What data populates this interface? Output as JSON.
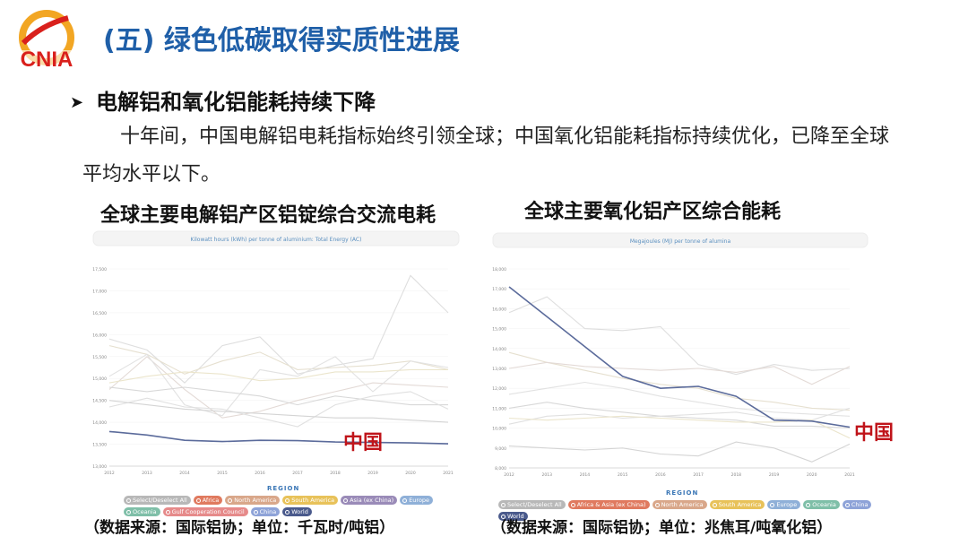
{
  "header": {
    "logo_text": "CNIA",
    "title": "(五) 绿色低碳取得实质性进展"
  },
  "bullet": {
    "text": "电解铝和氧化铝能耗持续下降",
    "paragraph": "十年间，中国电解铝电耗指标始终引领全球；中国氧化铝能耗指标持续优化，已降至全球平均水平以下。"
  },
  "colors": {
    "title": "#1f5fa8",
    "china_line": "#5b6b9b",
    "china_label": "#c0141a"
  },
  "chart_data": [
    {
      "type": "line",
      "title": "全球主要电解铝产区铝锭综合交流电耗",
      "subtitle": "Kilowatt hours (kWh) per tonne of aluminium: Total Energy (AC)",
      "x": [
        2012,
        2013,
        2014,
        2015,
        2016,
        2017,
        2018,
        2019,
        2020,
        2021
      ],
      "ylim": [
        13000,
        17500
      ],
      "yticks": [
        13000,
        13500,
        14000,
        14500,
        15000,
        15500,
        16000,
        16500,
        17000,
        17500
      ],
      "yticklabels": [
        "13,000",
        "13,500",
        "14,000",
        "14,500",
        "15,000",
        "15,500",
        "16,000",
        "16,500",
        "17,000",
        "17,500"
      ],
      "legend_title": "REGION",
      "legend": [
        {
          "label": "Select/Deselect All",
          "color": "#b8b8b8"
        },
        {
          "label": "Africa",
          "color": "#e07a5f"
        },
        {
          "label": "North America",
          "color": "#d9a78a"
        },
        {
          "label": "South America",
          "color": "#e8c25a"
        },
        {
          "label": "Asia (ex China)",
          "color": "#9a8bb8"
        },
        {
          "label": "Europe",
          "color": "#8fb0d8"
        },
        {
          "label": "Oceania",
          "color": "#7fbfa8"
        },
        {
          "label": "Gulf Cooperation Council",
          "color": "#e68a8a"
        },
        {
          "label": "China",
          "color": "#8ea3d8"
        },
        {
          "label": "World",
          "color": "#4a5a8c"
        }
      ],
      "annotation": "中国",
      "series": [
        {
          "name": "China",
          "values": [
            13790,
            13710,
            13590,
            13560,
            13590,
            13580,
            13550,
            13540,
            13530,
            13510
          ],
          "highlight": true
        },
        {
          "name": "",
          "values": [
            15900,
            15650,
            14900,
            15750,
            15950,
            15100,
            15300,
            15450,
            17350,
            16500
          ]
        },
        {
          "name": "",
          "values": [
            15750,
            15550,
            15100,
            15400,
            15600,
            15200,
            15250,
            15300,
            15400,
            15200
          ]
        },
        {
          "name": "",
          "values": [
            14750,
            15500,
            14750,
            14100,
            14250,
            14500,
            14700,
            14900,
            14850,
            14800
          ]
        },
        {
          "name": "",
          "values": [
            15050,
            15550,
            14400,
            14150,
            15200,
            15050,
            15500,
            14700,
            15400,
            15250
          ]
        },
        {
          "name": "",
          "values": [
            14800,
            14700,
            14800,
            14700,
            14600,
            14400,
            14600,
            14500,
            14400,
            14400
          ]
        },
        {
          "name": "",
          "values": [
            14350,
            14550,
            14350,
            14300,
            14100,
            13900,
            14400,
            14600,
            14700,
            14300
          ]
        },
        {
          "name": "",
          "values": [
            14900,
            15050,
            15150,
            15100,
            14950,
            15000,
            15150,
            15150,
            15200,
            15200
          ]
        },
        {
          "name": "",
          "values": [
            14500,
            14400,
            14300,
            14250,
            14200,
            14150,
            14100,
            14100,
            14050,
            14000
          ]
        }
      ]
    },
    {
      "type": "line",
      "title": "全球主要氧化铝产区综合能耗",
      "subtitle": "Megajoules (MJ) per tonne of alumina",
      "x": [
        2012,
        2013,
        2014,
        2015,
        2016,
        2017,
        2018,
        2019,
        2020,
        2021
      ],
      "ylim": [
        8000,
        18000
      ],
      "yticks": [
        8000,
        9000,
        10000,
        11000,
        12000,
        13000,
        14000,
        15000,
        16000,
        17000,
        18000
      ],
      "yticklabels": [
        "8,000",
        "9,000",
        "10,000",
        "11,000",
        "12,000",
        "13,000",
        "14,000",
        "15,000",
        "16,000",
        "17,000",
        "18,000"
      ],
      "legend_title": "REGION",
      "legend": [
        {
          "label": "Select/Deselect All",
          "color": "#b8b8b8"
        },
        {
          "label": "Africa & Asia (ex China)",
          "color": "#e07a5f"
        },
        {
          "label": "North America",
          "color": "#d9a78a"
        },
        {
          "label": "South America",
          "color": "#e8c25a"
        },
        {
          "label": "Europe",
          "color": "#8fb0d8"
        },
        {
          "label": "Oceania",
          "color": "#7fbfa8"
        },
        {
          "label": "China",
          "color": "#8ea3d8"
        },
        {
          "label": "World",
          "color": "#4a5a8c"
        }
      ],
      "annotation": "中国",
      "series": [
        {
          "name": "China",
          "values": [
            17100,
            15600,
            14100,
            12600,
            12000,
            12100,
            11600,
            10400,
            10350,
            10050
          ],
          "highlight": true
        },
        {
          "name": "",
          "values": [
            15800,
            16600,
            15000,
            14900,
            15100,
            13200,
            12700,
            13200,
            12900,
            13000
          ]
        },
        {
          "name": "",
          "values": [
            13800,
            13300,
            12900,
            12500,
            12200,
            12000,
            11500,
            11300,
            11000,
            10900
          ]
        },
        {
          "name": "",
          "values": [
            13000,
            13300,
            13100,
            13000,
            12900,
            13000,
            12800,
            13100,
            12200,
            13100
          ]
        },
        {
          "name": "",
          "values": [
            11700,
            12000,
            12300,
            12000,
            11600,
            11300,
            11000,
            10800,
            10700,
            10600
          ]
        },
        {
          "name": "",
          "values": [
            11000,
            11300,
            11000,
            10800,
            10600,
            10500,
            10400,
            10100,
            10100,
            10000
          ]
        },
        {
          "name": "",
          "values": [
            10200,
            10600,
            10700,
            10500,
            10600,
            10700,
            10800,
            10500,
            10400,
            11000
          ]
        },
        {
          "name": "",
          "values": [
            10500,
            10400,
            10500,
            10600,
            10500,
            10400,
            10300,
            10300,
            10400,
            9500
          ]
        },
        {
          "name": "",
          "values": [
            9100,
            9000,
            8900,
            9000,
            8700,
            8600,
            9300,
            9000,
            8300,
            9200
          ]
        }
      ]
    }
  ],
  "sources": [
    "（数据来源：国际铝协；单位：千瓦时/吨铝）",
    "（数据来源：国际铝协；单位：兆焦耳/吨氧化铝）"
  ]
}
